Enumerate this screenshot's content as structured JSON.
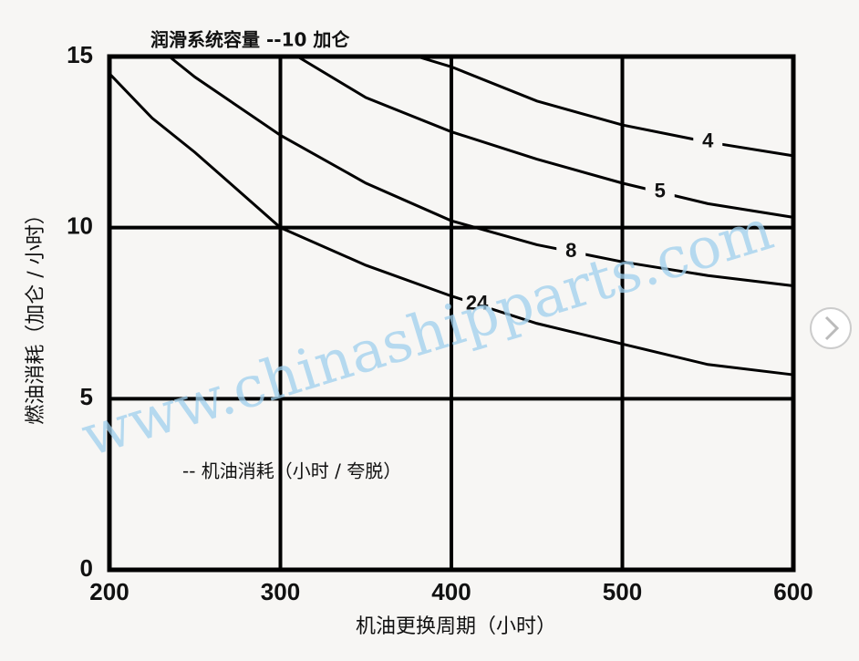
{
  "chart_data": {
    "type": "line",
    "title": "润滑系统容量 --10 加仑",
    "annotation": "-- 机油消耗（小时 / 夸脱）",
    "watermark": "www.chinashipparts.com",
    "x_label": "机油更换周期（小时）",
    "y_label": "燃油消耗（加仑 / 小时）",
    "xlim": [
      200,
      600
    ],
    "xticks": [
      200,
      300,
      400,
      500,
      600
    ],
    "ylim": [
      0,
      15
    ],
    "yticks": [
      0,
      5,
      10,
      15
    ],
    "grid": true,
    "series": [
      {
        "name": "4",
        "color": "#000000",
        "x": [
          380,
          400,
          450,
          500,
          550,
          600
        ],
        "values": [
          15,
          14.7,
          13.7,
          13.0,
          12.5,
          12.1
        ]
      },
      {
        "name": "5",
        "color": "#000000",
        "x": [
          310,
          350,
          400,
          450,
          500,
          550,
          600
        ],
        "values": [
          15,
          13.8,
          12.8,
          12.0,
          11.3,
          10.7,
          10.3
        ]
      },
      {
        "name": "8",
        "color": "#000000",
        "x": [
          235,
          250,
          300,
          350,
          400,
          450,
          500,
          550,
          600
        ],
        "values": [
          15,
          14.4,
          12.7,
          11.3,
          10.2,
          9.5,
          9.0,
          8.6,
          8.3
        ]
      },
      {
        "name": "24",
        "color": "#000000",
        "x": [
          200,
          225,
          250,
          300,
          350,
          400,
          450,
          500,
          550,
          600
        ],
        "values": [
          14.5,
          13.2,
          12.2,
          10.0,
          8.9,
          8.0,
          7.2,
          6.6,
          6.0,
          5.7
        ]
      }
    ]
  }
}
